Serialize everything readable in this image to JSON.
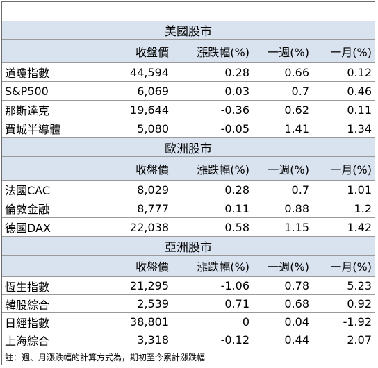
{
  "sections": [
    {
      "title": "美國股市",
      "headers": [
        "收盤價",
        "漲跌幅(%)",
        "一週(%)",
        "一月(%)"
      ],
      "rows": [
        {
          "name": "道瓊指數",
          "close": "44,594",
          "change": "0.28",
          "week": "0.66",
          "month": "0.12"
        },
        {
          "name": "S&P500",
          "close": "6,069",
          "change": "0.03",
          "week": "0.7",
          "month": "0.46"
        },
        {
          "name": "那斯達克",
          "close": "19,644",
          "change": "-0.36",
          "week": "0.62",
          "month": "0.11"
        },
        {
          "name": "費城半導體",
          "close": "5,080",
          "change": "-0.05",
          "week": "1.41",
          "month": "1.34"
        }
      ]
    },
    {
      "title": "歐洲股市",
      "headers": [
        "收盤價",
        "漲跌幅(%)",
        "一週(%)",
        "一月(%)"
      ],
      "rows": [
        {
          "name": "法國CAC",
          "close": "8,029",
          "change": "0.28",
          "week": "0.7",
          "month": "1.01"
        },
        {
          "name": "倫敦金融",
          "close": "8,777",
          "change": "0.11",
          "week": "0.88",
          "month": "1.2"
        },
        {
          "name": "德國DAX",
          "close": "22,038",
          "change": "0.58",
          "week": "1.15",
          "month": "1.42"
        }
      ]
    },
    {
      "title": "亞洲股市",
      "headers": [
        "收盤價",
        "漲跌幅(%)",
        "一週(%)",
        "一月(%)"
      ],
      "rows": [
        {
          "name": "恆生指數",
          "close": "21,295",
          "change": "-1.06",
          "week": "0.78",
          "month": "5.23"
        },
        {
          "name": "韓股綜合",
          "close": "2,539",
          "change": "0.71",
          "week": "0.68",
          "month": "0.92"
        },
        {
          "name": "日經指數",
          "close": "38,801",
          "change": "0",
          "week": "0.04",
          "month": "-1.92"
        },
        {
          "name": "上海綜合",
          "close": "3,318",
          "change": "-0.12",
          "week": "0.44",
          "month": "2.07"
        }
      ]
    }
  ],
  "note": "註：週、月漲跌幅的計算方式為，期初至今累計漲跌幅",
  "colors": {
    "band": "#d9e2ef",
    "border": "#9a9a9a"
  }
}
